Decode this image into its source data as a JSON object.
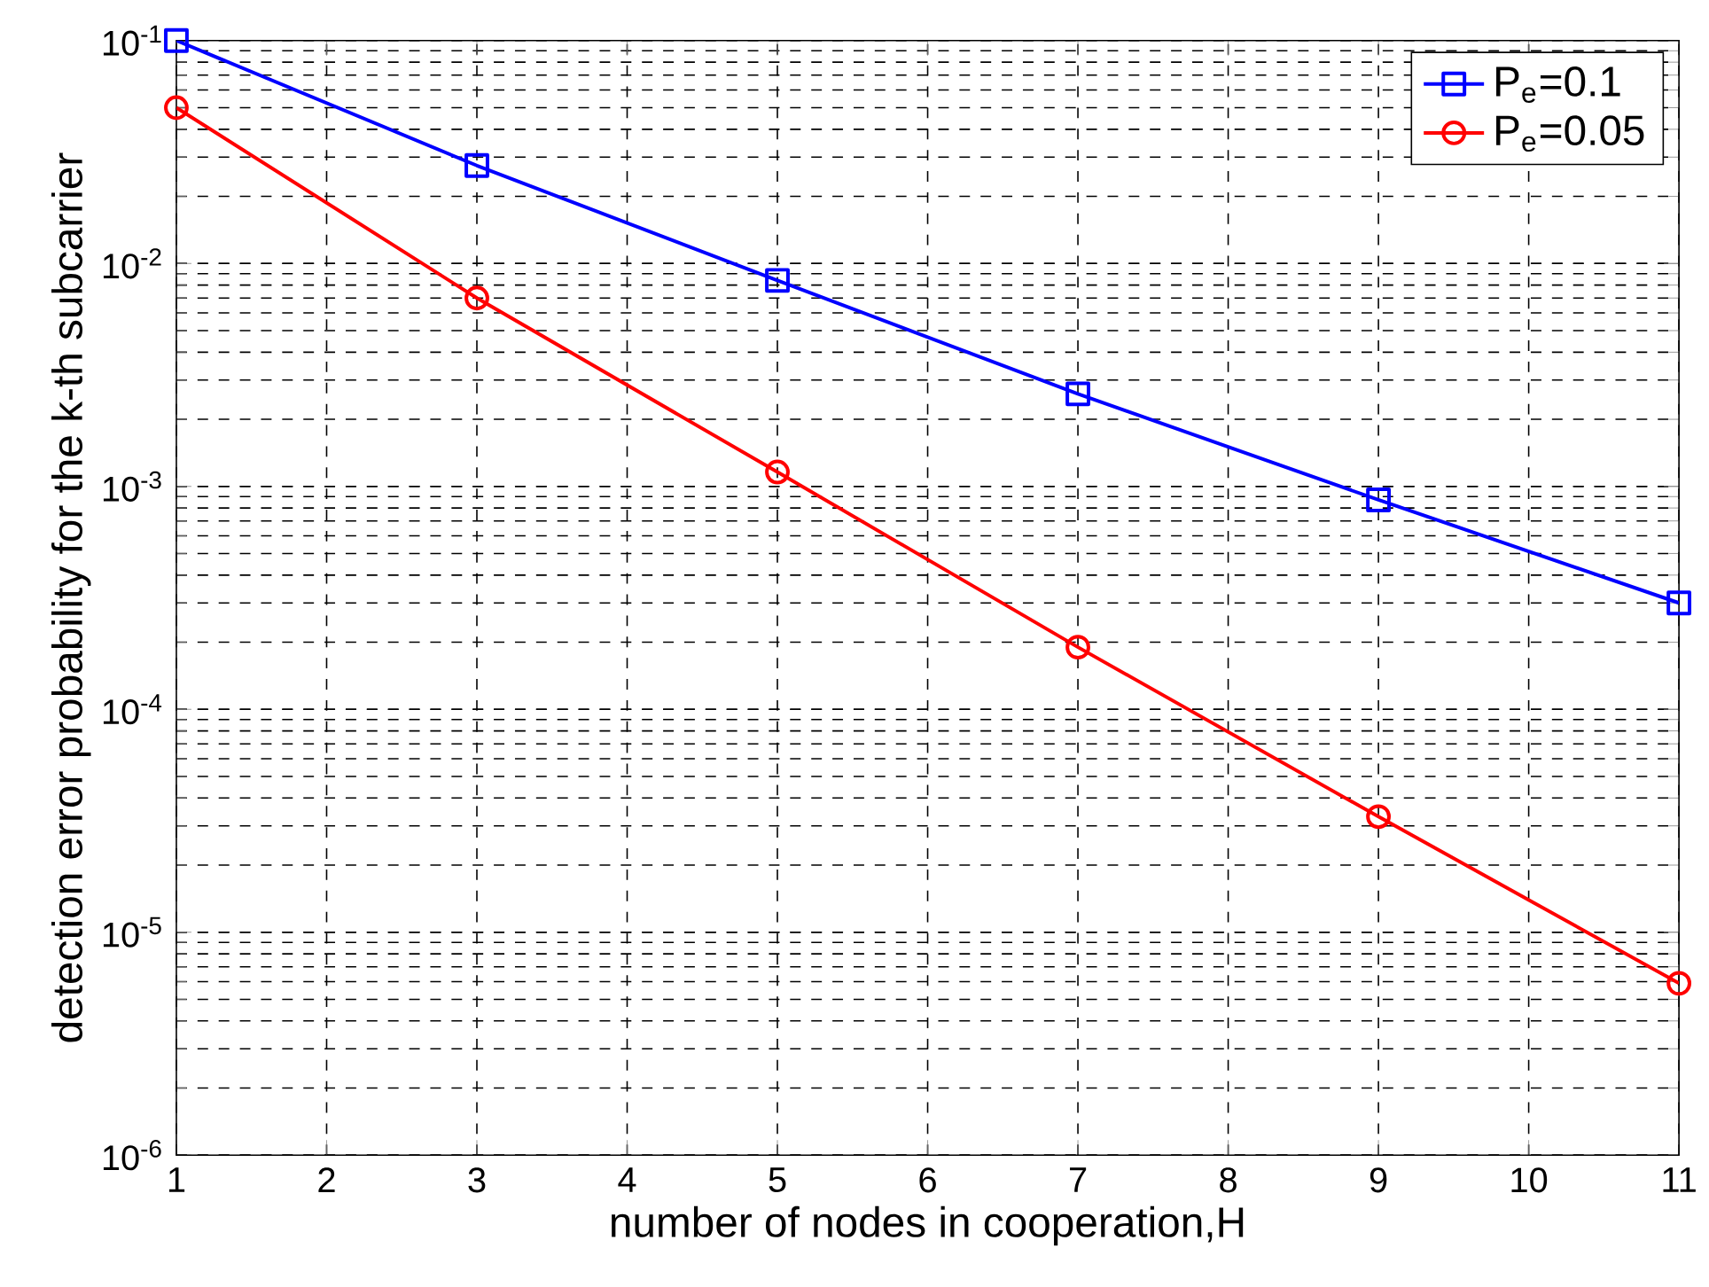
{
  "chart_data": {
    "type": "line",
    "xlabel": "number of nodes in cooperation,H",
    "ylabel": "detection error probability for the k-th subcarrier",
    "log": "y",
    "grid": true,
    "legend": "top right",
    "line_style": "solid",
    "x": [
      1,
      3,
      5,
      7,
      9,
      11
    ],
    "xlim": [
      1,
      11
    ],
    "xticks": [
      1,
      2,
      3,
      4,
      5,
      6,
      7,
      8,
      9,
      10,
      11
    ],
    "ylim": [
      1e-06,
      0.1
    ],
    "yticks": [
      {
        "value": 1e-06,
        "label": "10$^{-6}$"
      },
      {
        "value": 1e-05,
        "label": "10$^{-5}$"
      },
      {
        "value": 0.0001,
        "label": "10$^{-4}$"
      },
      {
        "value": 0.001,
        "label": "10$^{-3}$"
      },
      {
        "value": 0.01,
        "label": "10$^{-2}$"
      },
      {
        "value": 0.1,
        "label": "10$^{-1}$"
      }
    ],
    "series": [
      {
        "name": "P$_{e}$=0.1",
        "color": "#0000ff",
        "marker": "square",
        "values": [
          0.1,
          0.0275,
          0.0084,
          0.0026,
          0.00087,
          0.0003
        ]
      },
      {
        "name": "P$_{e}$=0.05",
        "color": "#ff0000",
        "marker": "circle",
        "values": [
          0.05,
          0.007,
          0.00116,
          0.00019,
          3.3e-05,
          5.9e-06
        ]
      }
    ]
  }
}
